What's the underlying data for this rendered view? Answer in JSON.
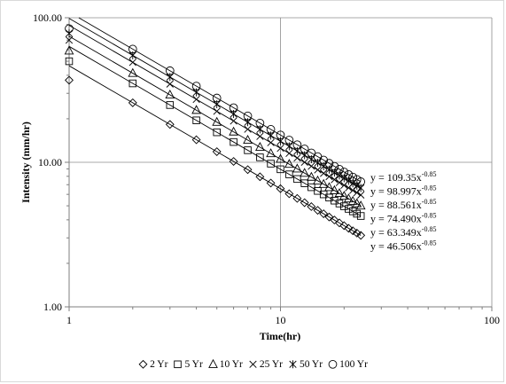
{
  "chart_data": {
    "type": "scatter",
    "title": "",
    "xlabel": "Time(hr)",
    "ylabel": "Intensity (mm/hr)",
    "x_scale": "log",
    "y_scale": "log",
    "xlim": [
      1,
      100
    ],
    "ylim": [
      1,
      100
    ],
    "x_ticks": [
      "1",
      "10",
      "100"
    ],
    "y_ticks": [
      "1.00",
      "10.00",
      "100.00"
    ],
    "grid": true,
    "legend_position": "bottom",
    "x": [
      1,
      2,
      3,
      4,
      5,
      6,
      7,
      8,
      9,
      10,
      11,
      12,
      13,
      14,
      15,
      16,
      17,
      18,
      19,
      20,
      21,
      22,
      23,
      24
    ],
    "series": [
      {
        "name": "2 Yr",
        "marker": "diamond",
        "coefficient": 46.506,
        "exponent": -0.85,
        "equation": "y = 46.506x",
        "equation_exponent": "-0.85",
        "first_value": 37
      },
      {
        "name": "5 Yr",
        "marker": "square",
        "coefficient": 63.349,
        "exponent": -0.85,
        "equation": "y = 63.349x",
        "equation_exponent": "-0.85",
        "first_value": 50
      },
      {
        "name": "10 Yr",
        "marker": "triangle",
        "coefficient": 74.49,
        "exponent": -0.85,
        "equation": "y = 74.490x",
        "equation_exponent": "-0.85",
        "first_value": 59
      },
      {
        "name": "25 Yr",
        "marker": "x",
        "coefficient": 88.561,
        "exponent": -0.85,
        "equation": "y = 88.561x",
        "equation_exponent": "-0.85",
        "first_value": 70
      },
      {
        "name": "50 Yr",
        "marker": "star",
        "coefficient": 98.997,
        "exponent": -0.85,
        "equation": "y = 98.997x",
        "equation_exponent": "-0.85",
        "first_value": 78
      },
      {
        "name": "100 Yr",
        "marker": "circle",
        "coefficient": 109.35,
        "exponent": -0.85,
        "equation": "y = 109.35x",
        "equation_exponent": "-0.85",
        "first_value": 84
      }
    ]
  }
}
